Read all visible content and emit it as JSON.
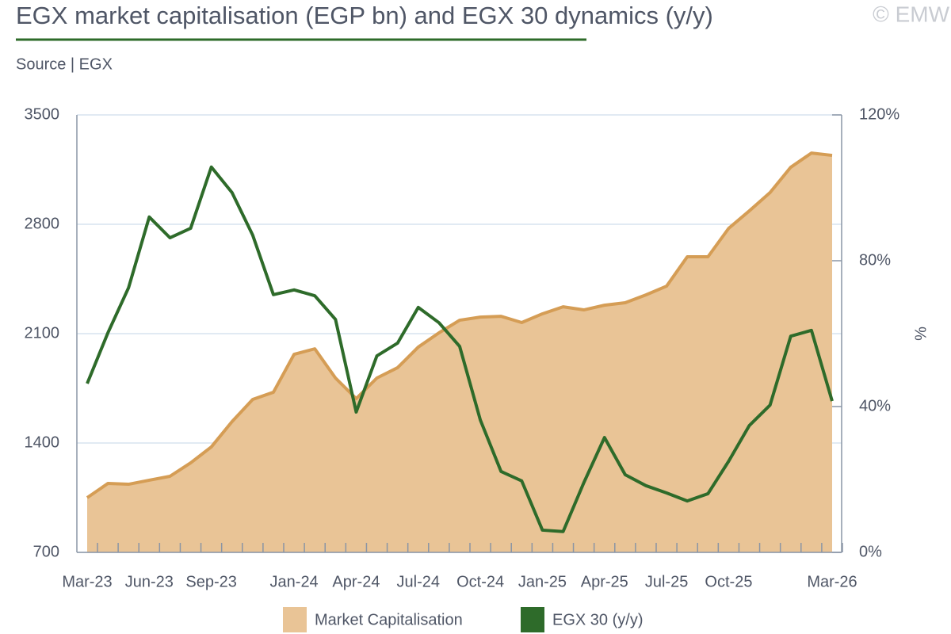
{
  "chart_data": {
    "type": "combo",
    "title": "EGX market capitalisation (EGP bn) and EGX 30 dynamics (y/y)",
    "subtitle": "Source | EGX",
    "watermark": "© EMW",
    "y2_label": "%",
    "categories": [
      "Mar-23",
      null,
      null,
      "Jun-23",
      null,
      null,
      "Sep-23",
      null,
      null,
      null,
      "Jan-24",
      null,
      null,
      "Apr-24",
      null,
      null,
      "Jul-24",
      null,
      null,
      "Oct-24",
      null,
      null,
      "Jan-25",
      null,
      null,
      "Apr-25",
      null,
      null,
      "Jul-25",
      null,
      null,
      "Oct-25",
      null,
      null,
      null,
      null,
      "Mar-26"
    ],
    "series": [
      {
        "name": "Market Capitalisation",
        "type": "area",
        "color": "#e9c496",
        "line_color": "#d59d55",
        "axis": "y",
        "values": [
          1050,
          1141,
          1136,
          1162,
          1187,
          1273,
          1375,
          1537,
          1679,
          1725,
          1968,
          2003,
          1816,
          1684,
          1816,
          1882,
          2014,
          2105,
          2186,
          2206,
          2211,
          2171,
          2227,
          2272,
          2252,
          2282,
          2298,
          2348,
          2404,
          2592,
          2592,
          2774,
          2886,
          3003,
          3165,
          3256,
          3241
        ]
      },
      {
        "name": "EGX 30 (y/y)",
        "type": "line",
        "color": "#2e6b2a",
        "axis": "y2",
        "values": [
          46.3,
          60.2,
          72.6,
          92.0,
          86.3,
          88.9,
          105.7,
          98.7,
          87.0,
          70.7,
          72.0,
          70.4,
          63.9,
          38.5,
          53.9,
          57.4,
          67.2,
          63.0,
          56.5,
          36.3,
          22.2,
          19.6,
          6.1,
          5.7,
          19.1,
          31.5,
          21.3,
          18.3,
          16.3,
          14.1,
          16.1,
          25.0,
          34.8,
          40.4,
          59.3,
          60.9,
          41.5
        ]
      }
    ],
    "ylim": [
      700,
      3500
    ],
    "yticks": [
      700,
      1400,
      2100,
      2800,
      3500
    ],
    "y2lim": [
      0,
      120
    ],
    "y2ticks": [
      {
        "value": 0,
        "label": "0%"
      },
      {
        "value": 40,
        "label": "40%"
      },
      {
        "value": 80,
        "label": "80%"
      },
      {
        "value": 120,
        "label": "120%"
      }
    ],
    "grid": true,
    "legend": "bottom"
  }
}
